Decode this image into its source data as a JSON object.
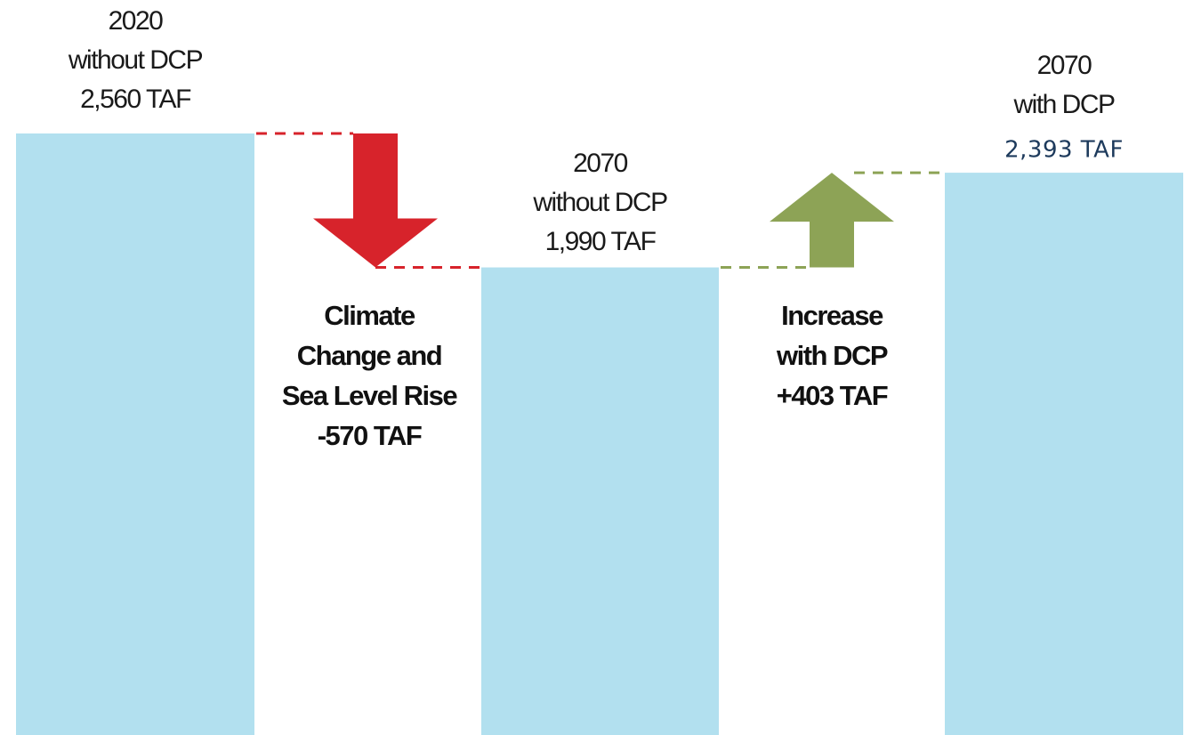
{
  "chart_data": {
    "type": "waterfall",
    "categories": [
      [
        "2020",
        "without DCP"
      ],
      [
        "2070",
        "without DCP"
      ],
      [
        "2070",
        "with DCP"
      ]
    ],
    "values": [
      2560,
      1990,
      2393
    ],
    "value_labels": [
      "2,560 TAF",
      "1,990 TAF",
      "2,393 TAF"
    ],
    "color": "#b2e0ef",
    "changes": [
      {
        "lines": [
          "Climate",
          "Change and",
          "Sea Level Rise"
        ],
        "value": -570,
        "value_label": "-570 TAF",
        "color": "#d7232b"
      },
      {
        "lines": [
          "Increase",
          "with DCP"
        ],
        "value": 403,
        "value_label": "+403 TAF",
        "color": "#8da356"
      }
    ]
  }
}
